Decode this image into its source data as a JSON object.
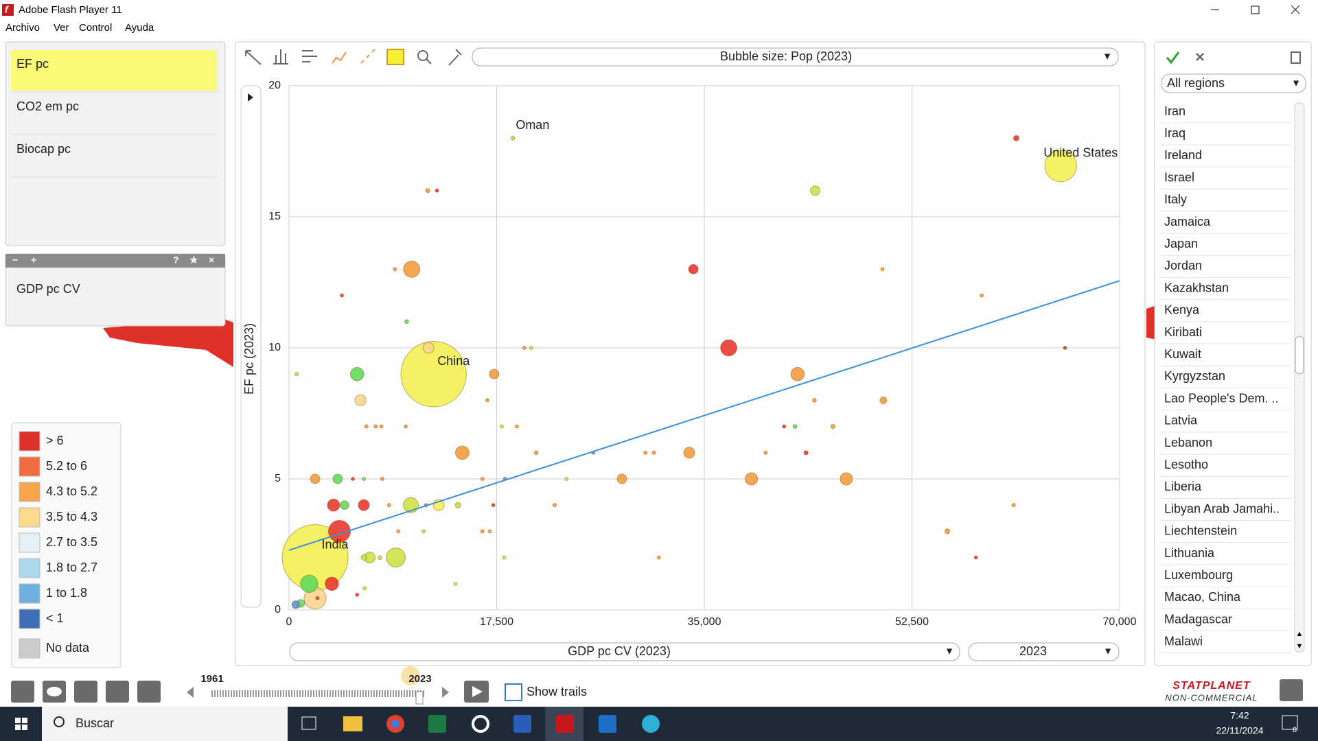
{
  "window": {
    "title": "Adobe Flash Player 11",
    "menu": [
      "Archivo",
      "Ver",
      "Control",
      "Ayuda"
    ]
  },
  "indicators": [
    "EF pc",
    "CO2 em pc",
    "Biocap pc"
  ],
  "selected_panel": {
    "item": "GDP pc CV"
  },
  "map_legend": {
    "items": [
      {
        "label": "> 6",
        "color": "#e0302a"
      },
      {
        "label": "5.2 to 6",
        "color": "#f26a42"
      },
      {
        "label": "4.3 to 5.2",
        "color": "#f7a44e"
      },
      {
        "label": "3.5 to 4.3",
        "color": "#fcd98c"
      },
      {
        "label": "2.7 to 3.5",
        "color": "#e4f2f8"
      },
      {
        "label": "1.8 to 2.7",
        "color": "#acd8ec"
      },
      {
        "label": "1 to 1.8",
        "color": "#6fb0dc"
      },
      {
        "label": "< 1",
        "color": "#3e6fb6"
      },
      {
        "label": "No data",
        "color": "#cccccc"
      }
    ]
  },
  "chart_data": {
    "type": "scatter",
    "bubble_size_selector": "Bubble size: Pop (2023)",
    "y_label": "EF pc (2023)",
    "x_selector": "GDP pc CV  (2023)",
    "year_selector": "2023",
    "xlim": [
      0,
      70000
    ],
    "xticks": [
      0,
      {
        "value": 17500,
        "label": "17,500"
      },
      {
        "value": 35000,
        "label": "35,000"
      },
      {
        "value": 52500,
        "label": "52,500"
      },
      {
        "value": 70000,
        "label": "70,000"
      }
    ],
    "ylim": [
      0,
      20
    ],
    "yticks": [
      0,
      5,
      10,
      15,
      20
    ],
    "grid": true,
    "series": [
      {
        "color": "#e8342c",
        "x": [
          61290,
          12470,
          34080,
          4460,
          37060,
          65400,
          3755,
          6306,
          4250,
          3613,
          43574,
          41730,
          5385,
          17217,
          57890,
          5740,
          2400
        ],
        "values": [
          18,
          16,
          13,
          12,
          10,
          10,
          4,
          4,
          3,
          1,
          6,
          7,
          5,
          4,
          2,
          0.58,
          0.45
        ],
        "sizes": [
          10,
          2,
          30,
          2,
          88,
          2,
          50,
          40,
          160,
          60,
          6,
          2,
          2,
          2,
          2,
          2,
          2
        ]
      },
      {
        "color": "#f39a3a",
        "x": [
          11690,
          10340,
          8930,
          50020,
          58380,
          19840,
          17290,
          42860,
          16720,
          44280,
          50090,
          6520,
          7300,
          7790,
          9850,
          19200,
          45840,
          14600,
          20830,
          30040,
          30750,
          33730,
          40170,
          2200,
          7860,
          16300,
          28060,
          38970,
          46970,
          8430,
          22390,
          61070,
          55480,
          9210,
          16300,
          16930,
          31170
        ],
        "values": [
          16,
          13,
          13,
          13,
          12,
          10,
          9,
          9,
          8,
          8,
          8,
          7,
          7,
          7,
          7,
          7,
          7,
          6,
          6,
          6,
          6,
          6,
          6,
          5,
          5,
          5,
          5,
          5,
          5,
          4,
          4,
          4,
          3,
          3,
          3,
          3,
          2
        ],
        "sizes": [
          6,
          88,
          4,
          3,
          3,
          4,
          30,
          60,
          3,
          5,
          15,
          4,
          3,
          3,
          3,
          3,
          6,
          60,
          5,
          3,
          3,
          40,
          3,
          30,
          3,
          4,
          30,
          50,
          50,
          3,
          4,
          4,
          8,
          3,
          4,
          3,
          4
        ]
      },
      {
        "color": "#fbd48c",
        "x": [
          6020,
          11760,
          2200
        ],
        "values": [
          8,
          10,
          0.45
        ],
        "sizes": [
          40,
          40,
          160
        ]
      },
      {
        "color": "#f3f04e",
        "x": [
          65040,
          12190,
          2200,
          12610
        ],
        "values": [
          16.95,
          9,
          2,
          4
        ],
        "sizes": [
          335,
          1410,
          1430,
          40
        ]
      },
      {
        "color": "#c9e142",
        "x": [
          18850,
          44350,
          20410,
          640,
          17930,
          10270,
          14240,
          6800,
          9000,
          6310,
          7650,
          18140,
          14030,
          23380,
          11340,
          6380
        ],
        "values": [
          18,
          16,
          10,
          9,
          7,
          4,
          4,
          2,
          2,
          2,
          2,
          2,
          1,
          5,
          3,
          0.83
        ],
        "sizes": [
          5,
          30,
          3,
          4,
          3,
          75,
          10,
          40,
          120,
          10,
          5,
          3,
          3,
          3,
          3,
          3
        ]
      },
      {
        "color": "#5fd95a",
        "x": [
          9920,
          5740,
          42650,
          4110,
          6310,
          4680,
          990,
          1700
        ],
        "values": [
          11,
          9,
          7,
          5,
          5,
          4,
          0.25,
          1
        ],
        "sizes": [
          5,
          60,
          5,
          30,
          3,
          25,
          20,
          100
        ]
      },
      {
        "color": "#5a8ed0",
        "x": [
          25650,
          18210,
          570,
          11550
        ],
        "values": [
          6,
          5,
          0.2,
          4
        ],
        "sizes": [
          3,
          4,
          20,
          2
        ]
      }
    ],
    "trend_line": {
      "color": "#3d8fd8",
      "x": [
        0,
        70000
      ],
      "values": [
        2.28,
        12.56
      ]
    },
    "annotations": [
      {
        "text": "Oman",
        "x": 18850,
        "y": 18
      },
      {
        "text": "United States",
        "x": 65040,
        "y": 16.95
      },
      {
        "text": "China",
        "x": 12190,
        "y": 9
      },
      {
        "text": "India",
        "x": 2200,
        "y": 2
      }
    ]
  },
  "region_filter": "All regions",
  "regions": [
    "Iran",
    "Iraq",
    "Ireland",
    "Israel",
    "Italy",
    "Jamaica",
    "Japan",
    "Jordan",
    "Kazakhstan",
    "Kenya",
    "Kiribati",
    "Kuwait",
    "Kyrgyzstan",
    "Lao People's Dem. ..",
    "Latvia",
    "Lebanon",
    "Lesotho",
    "Liberia",
    "Libyan Arab Jamahi..",
    "Liechtenstein",
    "Lithuania",
    "Luxembourg",
    "Macao, China",
    "Madagascar",
    "Malawi"
  ],
  "timeline": {
    "start": "1961",
    "end": "2023",
    "show_trails": "Show trails"
  },
  "branding": {
    "name": "STATPLANET",
    "edition": "NON-COMMERCIAL"
  },
  "taskbar": {
    "search": "Buscar",
    "time": "7:42",
    "date": "22/11/2024",
    "notifications": "8"
  }
}
